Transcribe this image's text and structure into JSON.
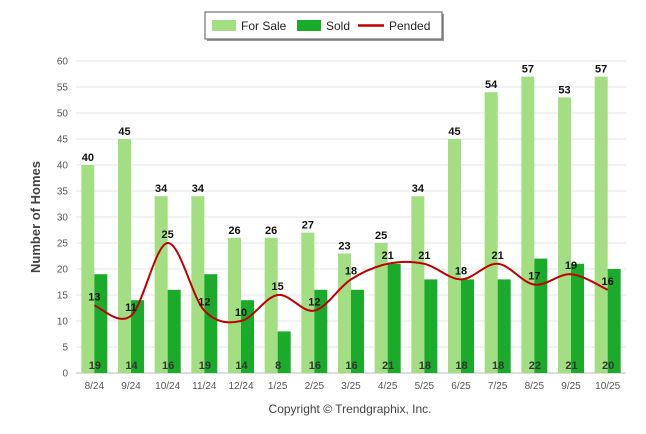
{
  "chart_data": {
    "type": "bar",
    "ylabel": "Number of Homes",
    "ylim": [
      0,
      60
    ],
    "yticks": [
      0,
      5,
      10,
      15,
      20,
      25,
      30,
      35,
      40,
      45,
      50,
      55,
      60
    ],
    "grid": true,
    "legend_position": "top-center",
    "categories": [
      "8/24",
      "9/24",
      "10/24",
      "11/24",
      "12/24",
      "1/25",
      "2/25",
      "3/25",
      "4/25",
      "5/25",
      "6/25",
      "7/25",
      "8/25",
      "9/25",
      "10/25"
    ],
    "series": [
      {
        "name": "For Sale",
        "kind": "bar",
        "color": "#a3de83",
        "values": [
          40,
          45,
          34,
          34,
          26,
          26,
          27,
          23,
          25,
          34,
          45,
          54,
          57,
          53,
          57
        ]
      },
      {
        "name": "Sold",
        "kind": "bar",
        "color": "#1aab2a",
        "values": [
          19,
          14,
          16,
          19,
          14,
          8,
          16,
          16,
          21,
          18,
          18,
          18,
          22,
          21,
          20
        ]
      },
      {
        "name": "Pended",
        "kind": "line",
        "color": "#c00000",
        "values": [
          13,
          11,
          25,
          12,
          10,
          15,
          12,
          18,
          21,
          21,
          18,
          21,
          17,
          19,
          16
        ]
      }
    ]
  },
  "footer": {
    "copyright": "Copyright © Trendgraphix, Inc."
  }
}
